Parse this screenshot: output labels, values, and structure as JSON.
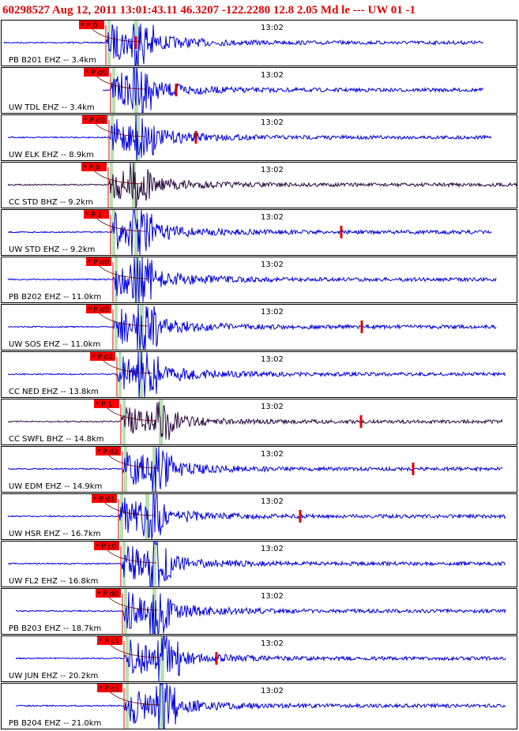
{
  "header": {
    "title": "60298527 Aug 12, 2011 13:01:43.11   46.3207 -122.2280 12.8 2.05 Md le --- UW 01  -1"
  },
  "traces": [
    {
      "station": "PB B201 EHZ -- 3.4km",
      "pick": "* P 0",
      "time": "13:02"
    },
    {
      "station": "UW TDL EHZ -- 3.4km",
      "pick": "* P d0",
      "time": "13:02"
    },
    {
      "station": "UW ELK EHZ -- 8.9km",
      "pick": "* P d0",
      "time": "13:02"
    },
    {
      "station": "CC STD BHZ -- 9.2km",
      "pick": "* P 0",
      "time": "13:02"
    },
    {
      "station": "UW STD EHZ -- 9.2km",
      "pick": "* P 1",
      "time": "13:02"
    },
    {
      "station": "PB B202 EHZ -- 11.0km",
      "pick": "* P d0",
      "time": "13:02"
    },
    {
      "station": "UW SOS EHZ -- 11.0km",
      "pick": "* P d0",
      "time": "13:02"
    },
    {
      "station": "CC NED EHZ -- 13.8km",
      "pick": "* P d2",
      "time": "13:02"
    },
    {
      "station": "CC SWFL BHZ -- 14.8km",
      "pick": "* P 1",
      "time": "13:02"
    },
    {
      "station": "UW EDM EHZ -- 14.9km",
      "pick": "* P d2",
      "time": "13:02"
    },
    {
      "station": "UW HSR EHZ -- 16.7km",
      "pick": "* P d1",
      "time": "13:02"
    },
    {
      "station": "UW FL2 EHZ -- 16.8km",
      "pick": "* P c0",
      "time": "13:02"
    },
    {
      "station": "PB B203 EHZ -- 18.7km",
      "pick": "* P d0",
      "time": "13:02"
    },
    {
      "station": "UW JUN EHZ -- 20.2km",
      "pick": "* P c1",
      "time": "13:02"
    },
    {
      "station": "PB B204 EHZ -- 21.0km",
      "pick": "* P c1",
      "time": "13:02"
    }
  ]
}
